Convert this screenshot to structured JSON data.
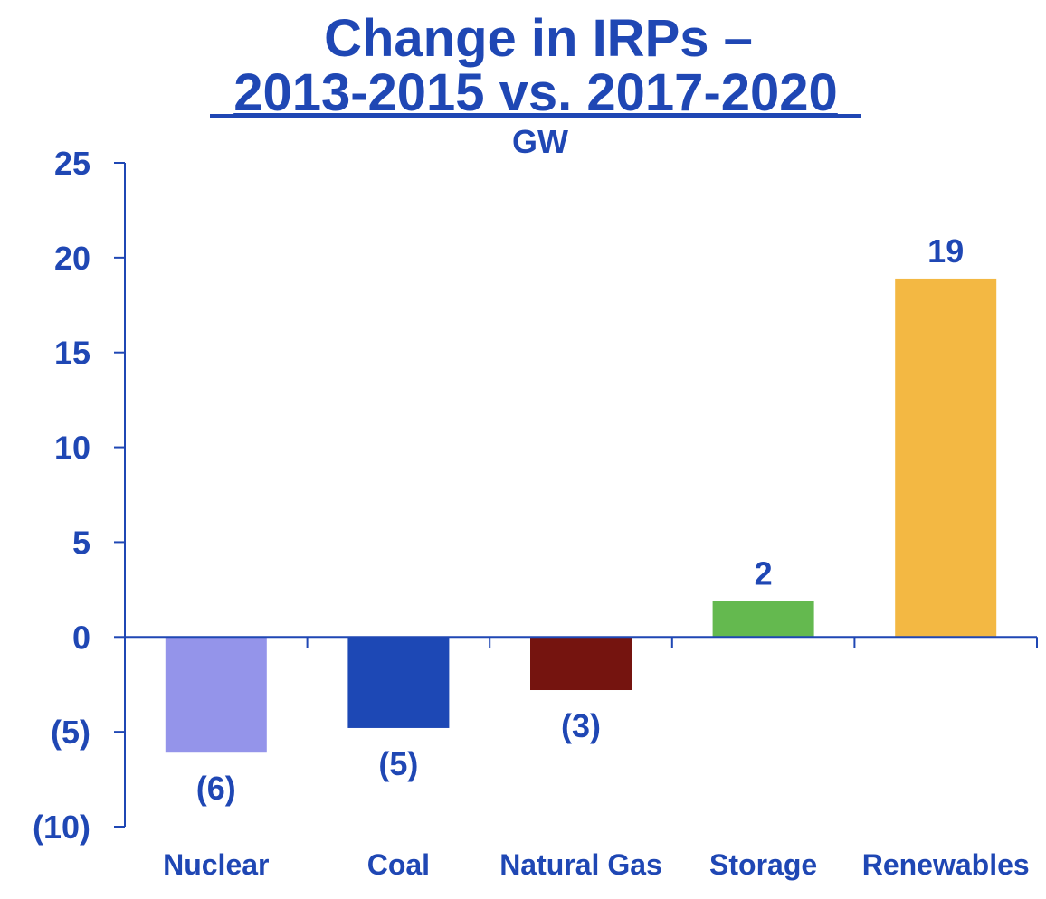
{
  "chart_data": {
    "type": "bar",
    "title_line1": "Change in IRPs –",
    "title_line2": "2013-2015 vs. 2017-2020",
    "subtitle": "GW",
    "xlabel": "",
    "ylabel": "",
    "ylim": [
      -10,
      25
    ],
    "yticks": [
      25,
      20,
      15,
      10,
      5,
      0,
      -5,
      -10
    ],
    "ytick_labels": [
      "25",
      "20",
      "15",
      "10",
      "5",
      "0",
      "(5)",
      "(10)"
    ],
    "categories": [
      "Nuclear",
      "Coal",
      "Natural Gas",
      "Storage",
      "Renewables"
    ],
    "values": [
      -6.1,
      -4.8,
      -2.8,
      1.9,
      18.9
    ],
    "data_labels": [
      "(6)",
      "(5)",
      "(3)",
      "2",
      "19"
    ],
    "colors": [
      "#9494ea",
      "#1d48b5",
      "#75140f",
      "#64b94f",
      "#f3b843"
    ],
    "text_color": "#1f47b4",
    "axis_color": "#1f47b4",
    "grid": false
  }
}
